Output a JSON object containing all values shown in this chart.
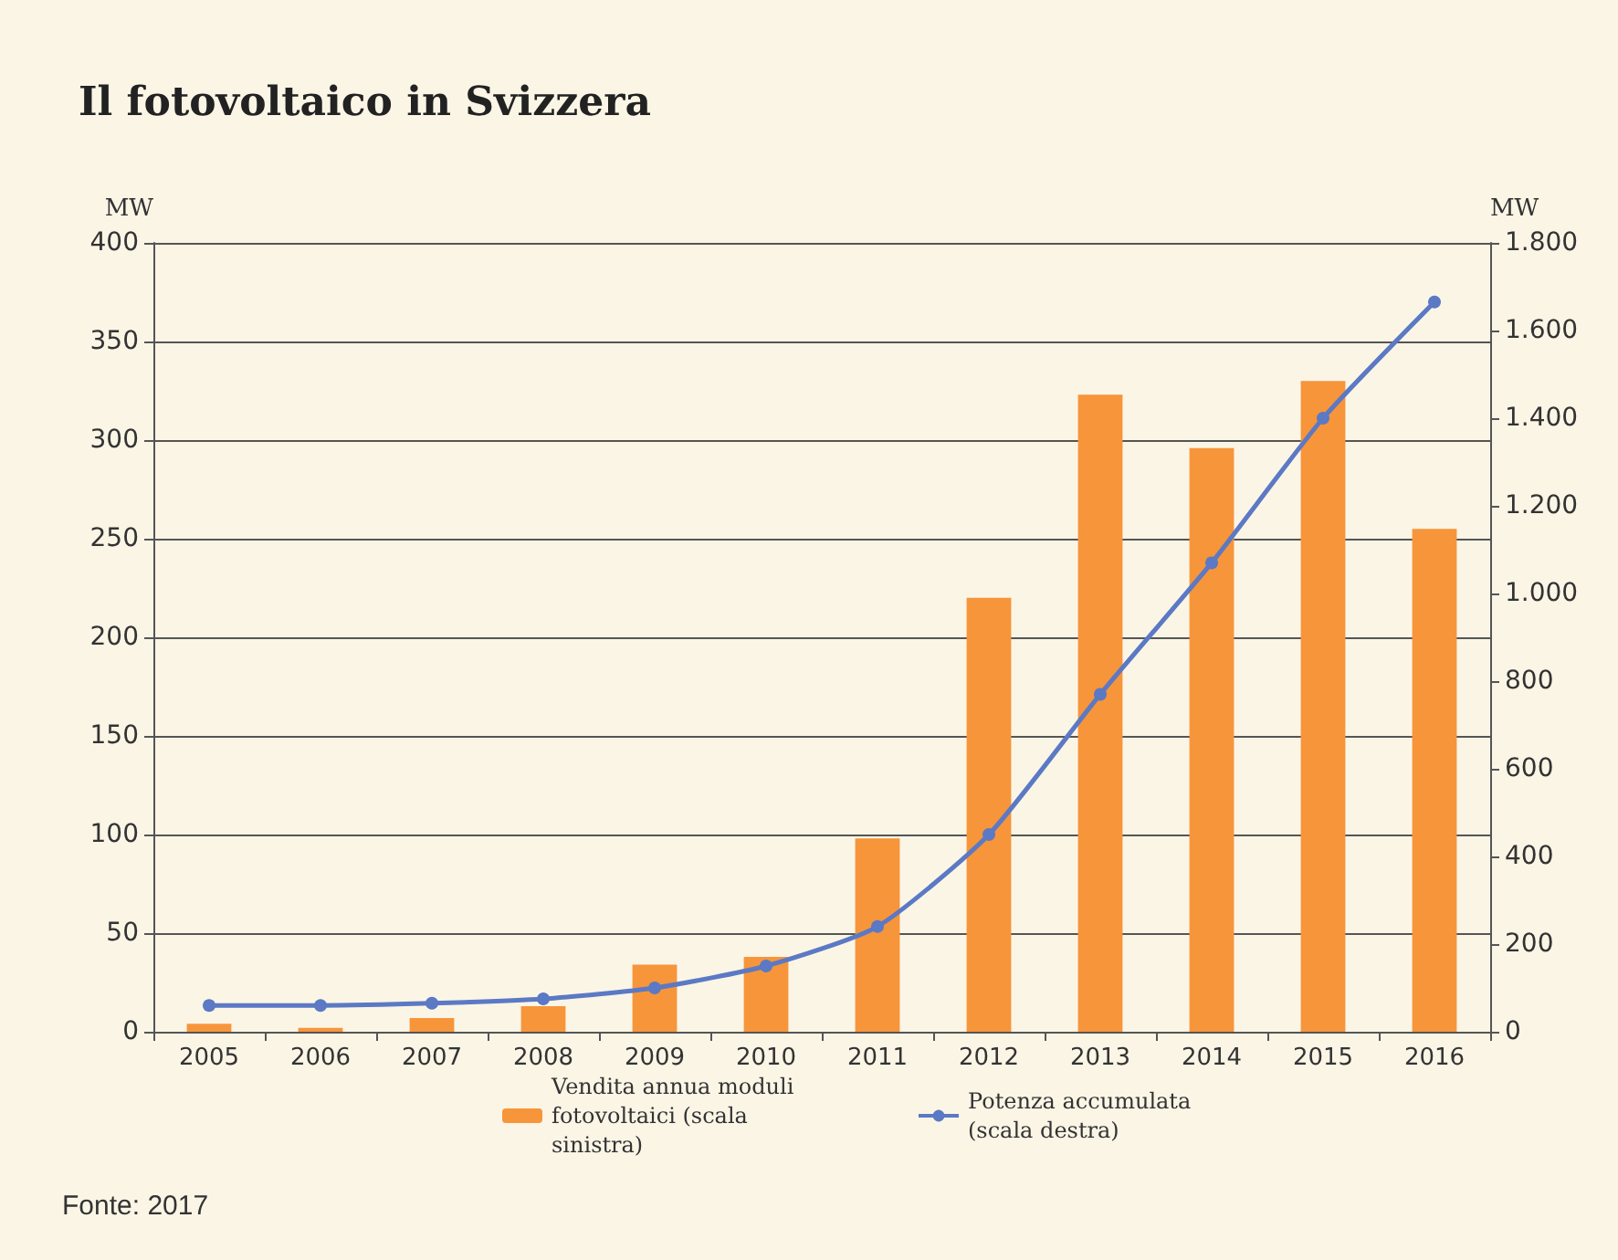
{
  "chart_data": {
    "type": "bar",
    "title": "Il fotovoltaico in Svizzera",
    "categories": [
      "2005",
      "2006",
      "2007",
      "2008",
      "2009",
      "2010",
      "2011",
      "2012",
      "2013",
      "2014",
      "2015",
      "2016"
    ],
    "series": [
      {
        "name": "Vendita annua moduli fotovoltaici (scala sinistra)",
        "color": "#f7953b",
        "values": [
          4,
          2,
          7,
          13,
          34,
          38,
          98,
          220,
          323,
          296,
          330,
          255
        ]
      },
      {
        "name": "Potenza accumulata (scala destra)",
        "type": "line",
        "axis": "y2",
        "color": "#5b79c4",
        "marker": "circle",
        "values": [
          60,
          60,
          65,
          75,
          100,
          150,
          240,
          450,
          770,
          1070,
          1400,
          1665
        ]
      }
    ],
    "ylabel": "MW",
    "y2label": "MW",
    "ylim": [
      0,
      400
    ],
    "yticks": [
      0,
      50,
      100,
      150,
      200,
      250,
      300,
      350,
      400
    ],
    "y2lim": [
      0,
      1800
    ],
    "y2ticks": [
      0,
      200,
      400,
      600,
      800,
      {
        "value": 1000,
        "label": "1.000"
      },
      {
        "value": 1200,
        "label": "1.200"
      },
      {
        "value": 1400,
        "label": "1.400"
      },
      {
        "value": 1600,
        "label": "1.600"
      },
      {
        "value": 1800,
        "label": "1.800"
      }
    ],
    "grid": "y",
    "legend": "bottom",
    "annotations": [
      "Fonte: 2017"
    ]
  }
}
